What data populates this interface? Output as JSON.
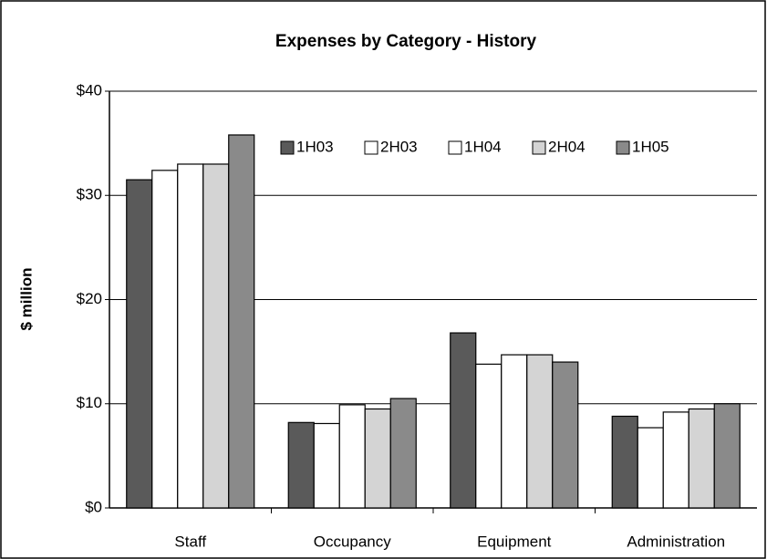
{
  "chart_data": {
    "type": "bar",
    "title": "Expenses by Category - History",
    "y_label": "$ million",
    "categories": [
      "Staff",
      "Occupancy",
      "Equipment",
      "Administration"
    ],
    "series": [
      {
        "name": "1H03",
        "color": "#5a5a5a",
        "values": [
          31.5,
          8.2,
          16.8,
          8.8
        ]
      },
      {
        "name": "2H03",
        "color": "#ffffff",
        "values": [
          32.4,
          8.1,
          13.8,
          7.7
        ]
      },
      {
        "name": "1H04",
        "color": "#ffffff",
        "values": [
          33.0,
          9.9,
          14.7,
          9.2
        ]
      },
      {
        "name": "2H04",
        "color": "#d4d4d4",
        "values": [
          33.0,
          9.5,
          14.7,
          9.5
        ]
      },
      {
        "name": "1H05",
        "color": "#8a8a8a",
        "values": [
          35.8,
          10.5,
          14.0,
          10.0
        ]
      }
    ],
    "ylim": [
      0,
      40
    ],
    "yticks": [
      {
        "value": 0,
        "label": "$0"
      },
      {
        "value": 10,
        "label": "$10"
      },
      {
        "value": 20,
        "label": "$20"
      },
      {
        "value": 30,
        "label": "$30"
      },
      {
        "value": 40,
        "label": "$40"
      }
    ],
    "grid": true,
    "legend": "top"
  }
}
